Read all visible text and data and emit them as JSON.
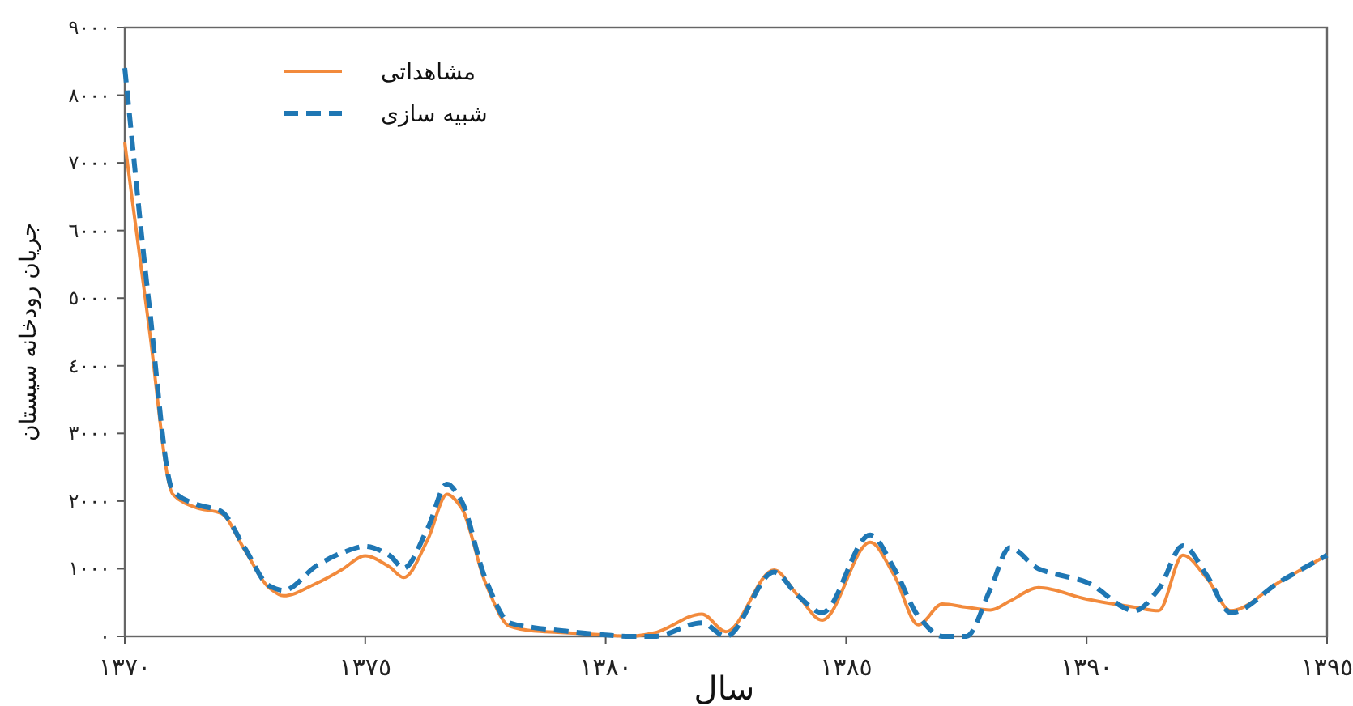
{
  "chart_data": {
    "type": "line",
    "xlabel": "سال",
    "ylabel": "جریان رودخانه سیستان",
    "x": [
      1370,
      1370.5,
      1371,
      1371.5,
      1372,
      1372.5,
      1373,
      1373.3,
      1374,
      1374.5,
      1375,
      1375.5,
      1375.8,
      1376.3,
      1376.7,
      1377,
      1377.5,
      1378,
      1378.5,
      1379,
      1380,
      1380.5,
      1381,
      1382,
      1382.5,
      1383.5,
      1384,
      1384.5,
      1385.5,
      1386,
      1386.5,
      1387,
      1387.5,
      1388,
      1388.4,
      1389,
      1390,
      1391,
      1391.5,
      1392,
      1392.5,
      1393,
      1394,
      1395
    ],
    "series": [
      {
        "name": "مشاهداتی",
        "color": "#f28a3c",
        "line_style": "solid",
        "values": [
          7300,
          4600,
          2100,
          1900,
          1820,
          1270,
          720,
          600,
          790,
          980,
          1190,
          1030,
          870,
          1430,
          2100,
          1900,
          790,
          150,
          80,
          60,
          20,
          0,
          50,
          330,
          70,
          980,
          600,
          240,
          1390,
          900,
          170,
          480,
          430,
          390,
          520,
          720,
          550,
          430,
          380,
          1200,
          860,
          380,
          800,
          1200
        ]
      },
      {
        "name": "شبیه سازی",
        "color": "#1f77b4",
        "line_style": "dashed",
        "values": [
          8400,
          4950,
          2150,
          1950,
          1850,
          1300,
          750,
          680,
          1050,
          1230,
          1330,
          1200,
          1010,
          1600,
          2250,
          2000,
          850,
          200,
          130,
          90,
          20,
          0,
          0,
          200,
          0,
          950,
          600,
          350,
          1500,
          1000,
          300,
          0,
          0,
          700,
          1310,
          1000,
          800,
          380,
          700,
          1340,
          900,
          350,
          800,
          1200
        ]
      }
    ],
    "xlim": [
      1370,
      1395
    ],
    "ylim": [
      0,
      9000
    ],
    "xticks": [
      {
        "value": 1370,
        "label": "١٣٧٠"
      },
      {
        "value": 1375,
        "label": "١٣٧٥"
      },
      {
        "value": 1380,
        "label": "١٣٨٠"
      },
      {
        "value": 1385,
        "label": "١٣٨٥"
      },
      {
        "value": 1390,
        "label": "١٣٩٠"
      },
      {
        "value": 1395,
        "label": "١٣٩٥"
      }
    ],
    "yticks": [
      {
        "value": 0,
        "label": "٠"
      },
      {
        "value": 1000,
        "label": "١٠٠٠"
      },
      {
        "value": 2000,
        "label": "٢٠٠٠"
      },
      {
        "value": 3000,
        "label": "٣٠٠٠"
      },
      {
        "value": 4000,
        "label": "٤٠٠٠"
      },
      {
        "value": 5000,
        "label": "٥٠٠٠"
      },
      {
        "value": 6000,
        "label": "٦٠٠٠"
      },
      {
        "value": 7000,
        "label": "٧٠٠٠"
      },
      {
        "value": 8000,
        "label": "٨٠٠٠"
      },
      {
        "value": 9000,
        "label": "٩٠٠٠"
      }
    ],
    "legend": "top left"
  }
}
